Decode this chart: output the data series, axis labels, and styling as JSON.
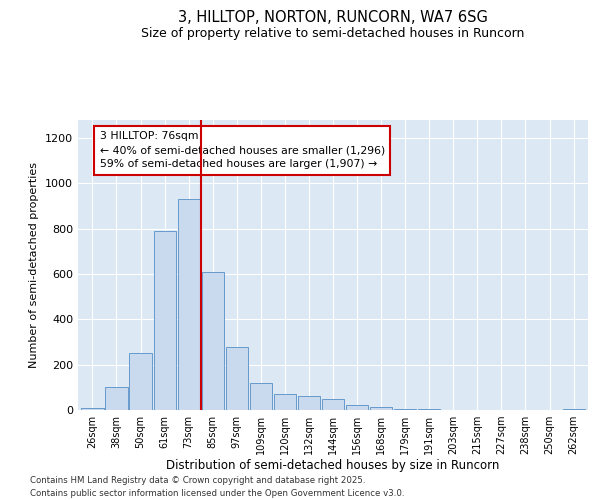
{
  "title1": "3, HILLTOP, NORTON, RUNCORN, WA7 6SG",
  "title2": "Size of property relative to semi-detached houses in Runcorn",
  "xlabel": "Distribution of semi-detached houses by size in Runcorn",
  "ylabel": "Number of semi-detached properties",
  "categories": [
    "26sqm",
    "38sqm",
    "50sqm",
    "61sqm",
    "73sqm",
    "85sqm",
    "97sqm",
    "109sqm",
    "120sqm",
    "132sqm",
    "144sqm",
    "156sqm",
    "168sqm",
    "179sqm",
    "191sqm",
    "203sqm",
    "215sqm",
    "227sqm",
    "238sqm",
    "250sqm",
    "262sqm"
  ],
  "values": [
    10,
    100,
    250,
    790,
    930,
    610,
    280,
    120,
    70,
    60,
    50,
    20,
    12,
    5,
    3,
    2,
    1,
    1,
    0,
    0,
    3
  ],
  "bar_color": "#c9d9ee",
  "bar_edge_color": "#6699cc",
  "vline_x": 4.5,
  "vline_color": "#cc0000",
  "annotation_text": "3 HILLTOP: 76sqm\n← 40% of semi-detached houses are smaller (1,296)\n59% of semi-detached houses are larger (1,907) →",
  "ylim": [
    0,
    1280
  ],
  "yticks": [
    0,
    200,
    400,
    600,
    800,
    1000,
    1200
  ],
  "footer1": "Contains HM Land Registry data © Crown copyright and database right 2025.",
  "footer2": "Contains public sector information licensed under the Open Government Licence v3.0.",
  "bg_color": "#dce9f5",
  "fig_bg": "#ffffff"
}
